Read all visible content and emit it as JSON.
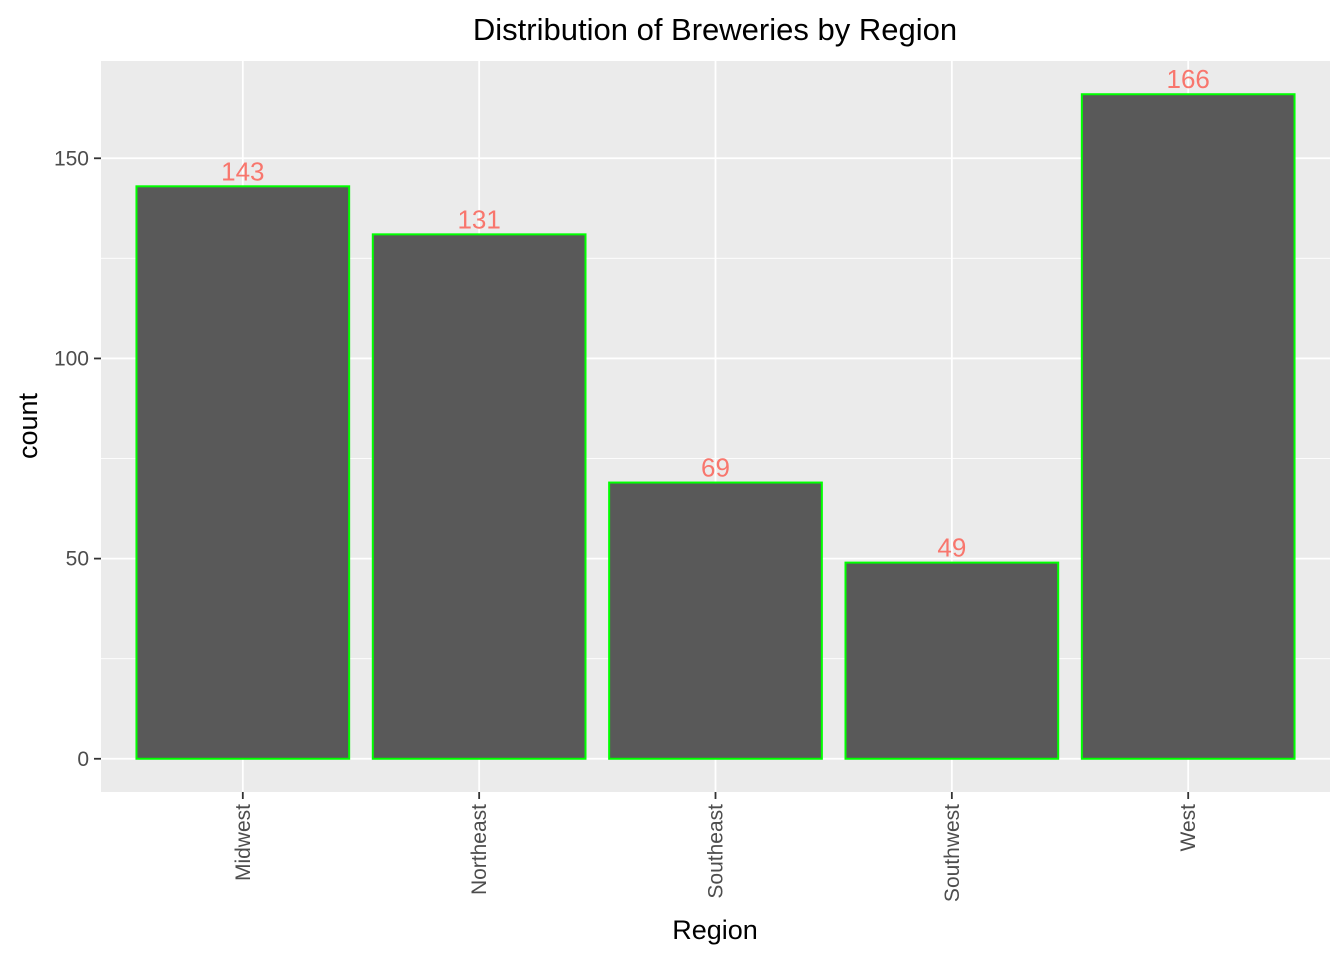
{
  "chart_data": {
    "type": "bar",
    "title": "Distribution of Breweries by Region",
    "xlabel": "Region",
    "ylabel": "count",
    "categories": [
      "Midwest",
      "Northeast",
      "Southeast",
      "Southwest",
      "West"
    ],
    "values": [
      143,
      131,
      69,
      49,
      166
    ],
    "data_labels": [
      "143",
      "131",
      "69",
      "49",
      "166"
    ],
    "ylim": [
      -8.3,
      174.3
    ],
    "yticks": [
      0,
      50,
      100,
      150
    ],
    "ytick_labels": [
      "0",
      "50",
      "100",
      "150"
    ],
    "grid": true,
    "x_tick_label_rotation": "vertical",
    "colors": {
      "panel_background": "#ebebeb",
      "grid": "#ffffff",
      "bar_fill": "#595959",
      "bar_outline": "#00ff00",
      "data_label": "#f8766d"
    }
  }
}
